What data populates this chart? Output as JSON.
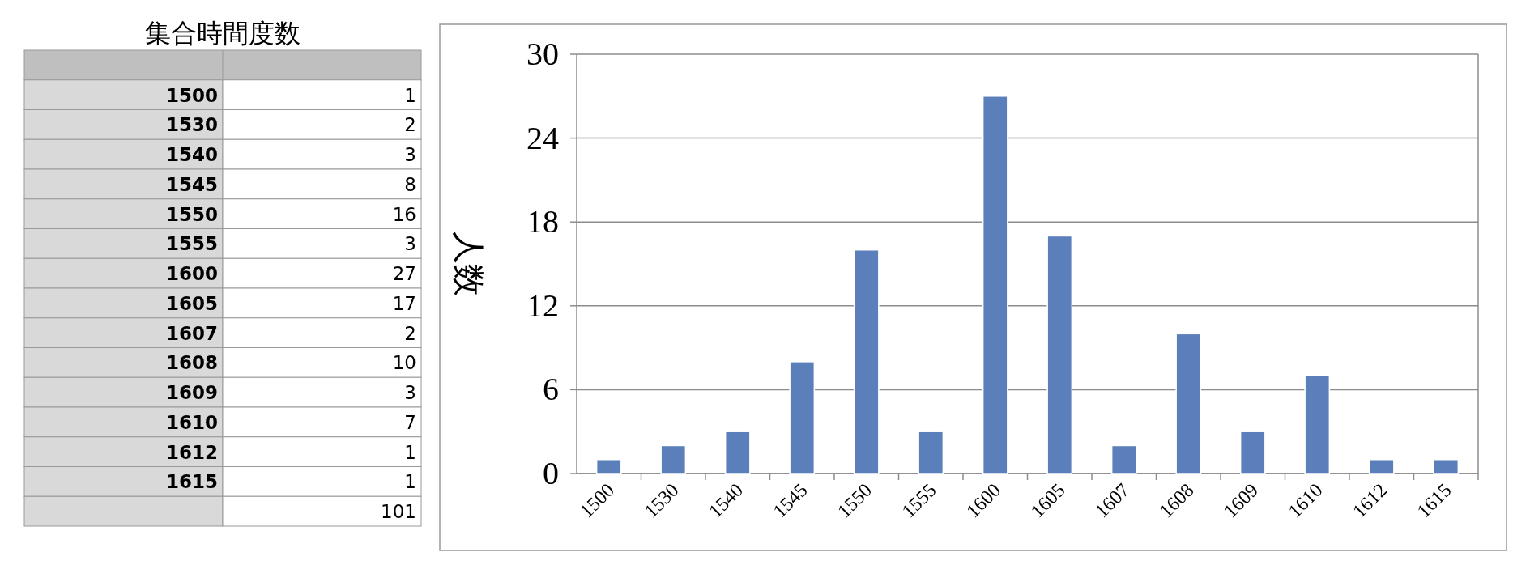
{
  "chart_data": [
    {
      "type": "other",
      "title": "集合時間度数",
      "annotations": [
        "1500",
        "1",
        "1530",
        "2",
        "1540",
        "3",
        "1545",
        "8",
        "1550",
        "16",
        "1555",
        "3",
        "1600",
        "27",
        "1605",
        "17",
        "1607",
        "2",
        "1608",
        "10",
        "1609",
        "3",
        "1610",
        "7",
        "1612",
        "1",
        "1615",
        "1",
        "101"
      ]
    },
    {
      "type": "bar",
      "ylabel": "人数",
      "categories": [
        "1500",
        "1530",
        "1540",
        "1545",
        "1550",
        "1555",
        "1600",
        "1605",
        "1607",
        "1608",
        "1609",
        "1610",
        "1612",
        "1615"
      ],
      "values": [
        1,
        2,
        3,
        8,
        16,
        3,
        27,
        17,
        2,
        10,
        3,
        7,
        1,
        1
      ],
      "color": "#5b7fbb",
      "ylim": [
        0,
        30
      ],
      "yticks": [
        0,
        6,
        12,
        18,
        24,
        30
      ],
      "grid": "y"
    }
  ]
}
